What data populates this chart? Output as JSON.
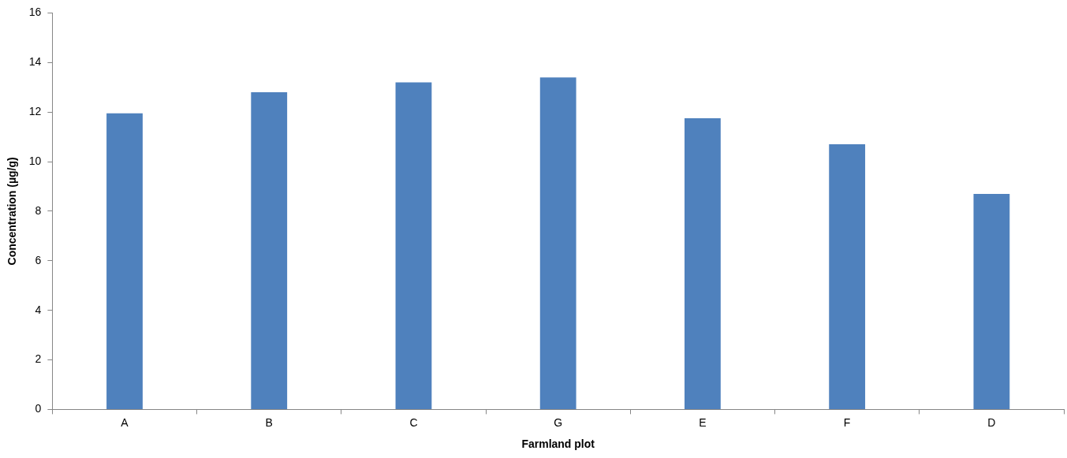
{
  "chart_data": {
    "type": "bar",
    "xlabel": "Farmland plot",
    "ylabel": "Concentration (µg/g)",
    "categories": [
      "A",
      "B",
      "C",
      "G",
      "E",
      "F",
      "D"
    ],
    "series": [
      {
        "color": "#4f81bd",
        "values": [
          11.95,
          12.8,
          13.2,
          13.4,
          11.75,
          10.7,
          8.7
        ]
      }
    ],
    "ylim": [
      0,
      16
    ],
    "yticks": [
      0,
      2,
      4,
      6,
      8,
      10,
      12,
      14,
      16
    ],
    "grid": false,
    "legend": false
  }
}
